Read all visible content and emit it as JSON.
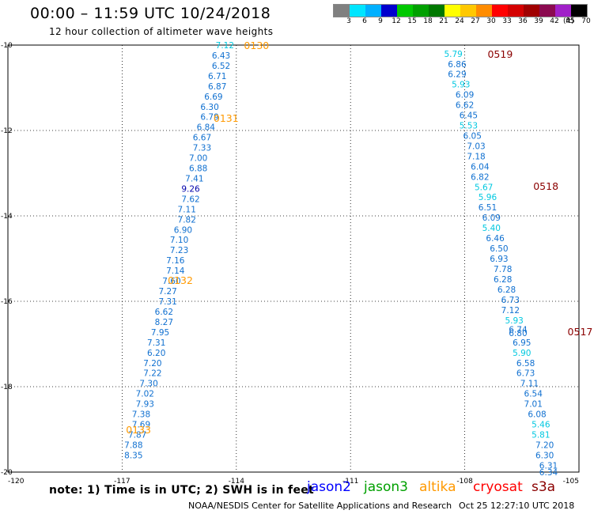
{
  "header": {
    "title": "00:00 – 11:59 UTC 10/24/2018",
    "subtitle": "12 hour collection of altimeter wave heights"
  },
  "legend": {
    "unit": "(ft)",
    "swatches": [
      {
        "label": "3",
        "color": "#808080"
      },
      {
        "label": "6",
        "color": "#00e5ff"
      },
      {
        "label": "9",
        "color": "#00b0ff"
      },
      {
        "label": "12",
        "color": "#0000cd"
      },
      {
        "label": "15",
        "color": "#00c800"
      },
      {
        "label": "18",
        "color": "#00a000"
      },
      {
        "label": "21",
        "color": "#007800"
      },
      {
        "label": "24",
        "color": "#ffff00"
      },
      {
        "label": "27",
        "color": "#ffc800"
      },
      {
        "label": "30",
        "color": "#ff8c00"
      },
      {
        "label": "33",
        "color": "#ff0000"
      },
      {
        "label": "36",
        "color": "#d40000"
      },
      {
        "label": "39",
        "color": "#a00000"
      },
      {
        "label": "42",
        "color": "#8b0a50"
      },
      {
        "label": "45",
        "color": "#a020c8"
      },
      {
        "label": "70",
        "color": "#000000"
      }
    ]
  },
  "footer": {
    "note": "note: 1) Time is in UTC; 2) SWH is in feet",
    "satellites": [
      {
        "name": "jason2",
        "color": "#0000ff"
      },
      {
        "name": "jason3",
        "color": "#00a000"
      },
      {
        "name": "altika",
        "color": "#ff9900"
      },
      {
        "name": "cryosat",
        "color": "#ff0000"
      },
      {
        "name": "s3a",
        "color": "#8b0000"
      }
    ],
    "credit": "NOAA/NESDIS Center for Satellite Applications and Research",
    "stamp": "Oct 25 12:27:10 UTC 2018"
  },
  "chart_data": {
    "type": "scatter",
    "xlim": [
      -120,
      -105
    ],
    "ylim": [
      -20,
      -10
    ],
    "x_ticks": [
      "-120",
      "-117",
      "-114",
      "-111",
      "-108",
      "-105"
    ],
    "y_ticks": [
      "-10",
      "-12",
      "-14",
      "-16",
      "-18",
      "-20"
    ],
    "grid": true,
    "colors": {
      "cyan": "#00c8e0",
      "blue": "#1070d0",
      "navy": "#0000aa",
      "altika": "#ff9900",
      "s3a": "#8b0000"
    },
    "tracks": [
      {
        "satellite": "altika",
        "time_color": "altika",
        "times": [
          {
            "label": "0130",
            "lon": -113.8,
            "lat": -10.0
          },
          {
            "label": "0131",
            "lon": -114.6,
            "lat": -11.7
          },
          {
            "label": "0132",
            "lon": -115.8,
            "lat": -15.5
          },
          {
            "label": "0133",
            "lon": -116.9,
            "lat": -19.0
          }
        ],
        "points": [
          {
            "lon": -114.3,
            "lat": -10.0,
            "v": "7.12",
            "c": "cyan"
          },
          {
            "lon": -114.4,
            "lat": -10.24,
            "v": "6.43",
            "c": "blue"
          },
          {
            "lon": -114.4,
            "lat": -10.48,
            "v": "6.52",
            "c": "blue"
          },
          {
            "lon": -114.5,
            "lat": -10.72,
            "v": "6.71",
            "c": "blue"
          },
          {
            "lon": -114.5,
            "lat": -10.96,
            "v": "6.87",
            "c": "blue"
          },
          {
            "lon": -114.6,
            "lat": -11.2,
            "v": "6.69",
            "c": "blue"
          },
          {
            "lon": -114.7,
            "lat": -11.44,
            "v": "6.30",
            "c": "blue"
          },
          {
            "lon": -114.7,
            "lat": -11.68,
            "v": "6.79",
            "c": "blue"
          },
          {
            "lon": -114.8,
            "lat": -11.92,
            "v": "6.84",
            "c": "blue"
          },
          {
            "lon": -114.9,
            "lat": -12.16,
            "v": "6.67",
            "c": "blue"
          },
          {
            "lon": -114.9,
            "lat": -12.4,
            "v": "7.33",
            "c": "blue"
          },
          {
            "lon": -115.0,
            "lat": -12.64,
            "v": "7.00",
            "c": "blue"
          },
          {
            "lon": -115.0,
            "lat": -12.88,
            "v": "6.88",
            "c": "blue"
          },
          {
            "lon": -115.1,
            "lat": -13.12,
            "v": "7.41",
            "c": "blue"
          },
          {
            "lon": -115.2,
            "lat": -13.36,
            "v": "9.26",
            "c": "navy"
          },
          {
            "lon": -115.2,
            "lat": -13.6,
            "v": "7.62",
            "c": "blue"
          },
          {
            "lon": -115.3,
            "lat": -13.84,
            "v": "7.11",
            "c": "blue"
          },
          {
            "lon": -115.3,
            "lat": -14.08,
            "v": "7.82",
            "c": "blue"
          },
          {
            "lon": -115.4,
            "lat": -14.32,
            "v": "6.90",
            "c": "blue"
          },
          {
            "lon": -115.5,
            "lat": -14.56,
            "v": "7.10",
            "c": "blue"
          },
          {
            "lon": -115.5,
            "lat": -14.8,
            "v": "7.23",
            "c": "blue"
          },
          {
            "lon": -115.6,
            "lat": -15.04,
            "v": "7.16",
            "c": "blue"
          },
          {
            "lon": -115.6,
            "lat": -15.28,
            "v": "7.14",
            "c": "blue"
          },
          {
            "lon": -115.7,
            "lat": -15.52,
            "v": "7.60",
            "c": "blue"
          },
          {
            "lon": -115.8,
            "lat": -15.76,
            "v": "7.27",
            "c": "blue"
          },
          {
            "lon": -115.8,
            "lat": -16.0,
            "v": "7.31",
            "c": "blue"
          },
          {
            "lon": -115.9,
            "lat": -16.24,
            "v": "6.62",
            "c": "blue"
          },
          {
            "lon": -115.9,
            "lat": -16.48,
            "v": "8.27",
            "c": "blue"
          },
          {
            "lon": -116.0,
            "lat": -16.72,
            "v": "7.95",
            "c": "blue"
          },
          {
            "lon": -116.1,
            "lat": -16.96,
            "v": "7.31",
            "c": "blue"
          },
          {
            "lon": -116.1,
            "lat": -17.2,
            "v": "6.20",
            "c": "blue"
          },
          {
            "lon": -116.2,
            "lat": -17.44,
            "v": "7.20",
            "c": "blue"
          },
          {
            "lon": -116.2,
            "lat": -17.68,
            "v": "7.22",
            "c": "blue"
          },
          {
            "lon": -116.3,
            "lat": -17.92,
            "v": "7.30",
            "c": "blue"
          },
          {
            "lon": -116.4,
            "lat": -18.16,
            "v": "7.02",
            "c": "blue"
          },
          {
            "lon": -116.4,
            "lat": -18.4,
            "v": "7.93",
            "c": "blue"
          },
          {
            "lon": -116.5,
            "lat": -18.64,
            "v": "7.38",
            "c": "blue"
          },
          {
            "lon": -116.5,
            "lat": -18.88,
            "v": "7.69",
            "c": "blue"
          },
          {
            "lon": -116.6,
            "lat": -19.12,
            "v": "7.87",
            "c": "blue"
          },
          {
            "lon": -116.7,
            "lat": -19.36,
            "v": "7.88",
            "c": "blue"
          },
          {
            "lon": -116.7,
            "lat": -19.6,
            "v": "8.35",
            "c": "blue"
          }
        ]
      },
      {
        "satellite": "s3a",
        "time_color": "s3a",
        "times": [
          {
            "label": "0519",
            "lon": -107.4,
            "lat": -10.2
          },
          {
            "label": "0518",
            "lon": -106.2,
            "lat": -13.3
          },
          {
            "label": "0517",
            "lon": -105.3,
            "lat": -16.7
          }
        ],
        "points": [
          {
            "lon": -108.3,
            "lat": -10.2,
            "v": "5.79",
            "c": "cyan"
          },
          {
            "lon": -108.2,
            "lat": -10.44,
            "v": "6.86",
            "c": "blue"
          },
          {
            "lon": -108.2,
            "lat": -10.68,
            "v": "6.29",
            "c": "blue"
          },
          {
            "lon": -108.1,
            "lat": -10.92,
            "v": "5.93",
            "c": "cyan"
          },
          {
            "lon": -108.0,
            "lat": -11.16,
            "v": "6.09",
            "c": "blue"
          },
          {
            "lon": -108.0,
            "lat": -11.4,
            "v": "6.62",
            "c": "blue"
          },
          {
            "lon": -107.9,
            "lat": -11.64,
            "v": "6.45",
            "c": "blue"
          },
          {
            "lon": -107.9,
            "lat": -11.88,
            "v": "5.53",
            "c": "cyan"
          },
          {
            "lon": -107.8,
            "lat": -12.12,
            "v": "6.05",
            "c": "blue"
          },
          {
            "lon": -107.7,
            "lat": -12.36,
            "v": "7.03",
            "c": "blue"
          },
          {
            "lon": -107.7,
            "lat": -12.6,
            "v": "7.18",
            "c": "blue"
          },
          {
            "lon": -107.6,
            "lat": -12.84,
            "v": "6.04",
            "c": "blue"
          },
          {
            "lon": -107.6,
            "lat": -13.08,
            "v": "6.82",
            "c": "blue"
          },
          {
            "lon": -107.5,
            "lat": -13.32,
            "v": "5.67",
            "c": "cyan"
          },
          {
            "lon": -107.4,
            "lat": -13.56,
            "v": "5.96",
            "c": "cyan"
          },
          {
            "lon": -107.4,
            "lat": -13.8,
            "v": "6.51",
            "c": "blue"
          },
          {
            "lon": -107.3,
            "lat": -14.04,
            "v": "6.09",
            "c": "blue"
          },
          {
            "lon": -107.3,
            "lat": -14.28,
            "v": "5.40",
            "c": "cyan"
          },
          {
            "lon": -107.2,
            "lat": -14.52,
            "v": "6.46",
            "c": "blue"
          },
          {
            "lon": -107.1,
            "lat": -14.76,
            "v": "6.50",
            "c": "blue"
          },
          {
            "lon": -107.1,
            "lat": -15.0,
            "v": "6.93",
            "c": "blue"
          },
          {
            "lon": -107.0,
            "lat": -15.24,
            "v": "7.78",
            "c": "blue"
          },
          {
            "lon": -107.0,
            "lat": -15.48,
            "v": "6.28",
            "c": "blue"
          },
          {
            "lon": -106.9,
            "lat": -15.72,
            "v": "6.28",
            "c": "blue"
          },
          {
            "lon": -106.8,
            "lat": -15.96,
            "v": "6.73",
            "c": "blue"
          },
          {
            "lon": -106.8,
            "lat": -16.2,
            "v": "7.12",
            "c": "blue"
          },
          {
            "lon": -106.7,
            "lat": -16.44,
            "v": "5.93",
            "c": "cyan"
          },
          {
            "lon": -106.6,
            "lat": -16.66,
            "v": "6.74",
            "c": "blue"
          },
          {
            "lon": -106.6,
            "lat": -16.74,
            "v": "6.80",
            "c": "blue"
          },
          {
            "lon": -106.5,
            "lat": -16.96,
            "v": "6.95",
            "c": "blue"
          },
          {
            "lon": -106.5,
            "lat": -17.2,
            "v": "5.90",
            "c": "cyan"
          },
          {
            "lon": -106.4,
            "lat": -17.44,
            "v": "6.58",
            "c": "blue"
          },
          {
            "lon": -106.4,
            "lat": -17.68,
            "v": "6.73",
            "c": "blue"
          },
          {
            "lon": -106.3,
            "lat": -17.92,
            "v": "7.11",
            "c": "blue"
          },
          {
            "lon": -106.2,
            "lat": -18.16,
            "v": "6.54",
            "c": "blue"
          },
          {
            "lon": -106.2,
            "lat": -18.4,
            "v": "7.01",
            "c": "blue"
          },
          {
            "lon": -106.1,
            "lat": -18.64,
            "v": "6.08",
            "c": "blue"
          },
          {
            "lon": -106.0,
            "lat": -18.88,
            "v": "5.46",
            "c": "cyan"
          },
          {
            "lon": -106.0,
            "lat": -19.12,
            "v": "5.81",
            "c": "cyan"
          },
          {
            "lon": -105.9,
            "lat": -19.36,
            "v": "7.20",
            "c": "blue"
          },
          {
            "lon": -105.9,
            "lat": -19.6,
            "v": "6.30",
            "c": "blue"
          },
          {
            "lon": -105.8,
            "lat": -19.84,
            "v": "6.31",
            "c": "blue"
          },
          {
            "lon": -105.8,
            "lat": -20.0,
            "v": "6.34",
            "c": "blue"
          }
        ]
      }
    ]
  }
}
